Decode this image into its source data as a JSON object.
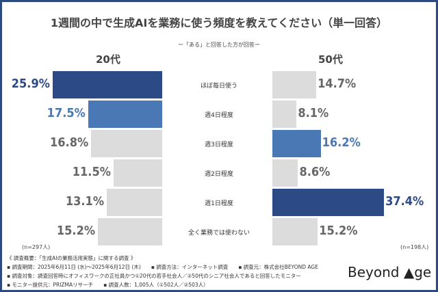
{
  "chart_data": {
    "type": "bar",
    "orientation": "horizontal",
    "title": "1週間の中で生成AIを業務に使う頻度を教えてください（単一回答）",
    "subtitle": "ー「ある」と回答した方が回答ー",
    "categories": [
      "ほぼ毎日使う",
      "週4日程度",
      "週3日程度",
      "週2日程度",
      "週1日程度",
      "全く業務では使わない"
    ],
    "series": [
      {
        "name": "20代",
        "values": [
          25.9,
          17.5,
          16.8,
          11.5,
          13.1,
          15.2
        ],
        "n_label": "(n=297人)"
      },
      {
        "name": "50代",
        "values": [
          14.7,
          8.1,
          16.2,
          8.6,
          37.4,
          15.2
        ],
        "n_label": "(n=198人)"
      }
    ],
    "unit": "%",
    "highlight": {
      "20代": [
        0,
        1
      ],
      "50代": [
        2,
        4
      ]
    }
  },
  "colors": {
    "top": "#2c4a85",
    "second": "#4a78b5",
    "other": "#dcdcdc",
    "label_other": "#666666",
    "border": "#2d4a80"
  },
  "footnotes": [
    "《 調査概要：「生成AIの業務活用実態」に関する調査 》",
    "▪ 調査期間：2025年6月11日 (水)〜2025年6月12日 (木)　　▪ 調査方法：インターネット調査　　▪ 調査元：株式会社BEYOND AGE",
    "▪ 調査対象：調査回答時にオフィスワークの正社員かつ①20代の若手社会人／②50代のシニア社会人であると回答したモニター",
    "▪ モニター提供元：PRIZMAリサーチ　　▪ 調査人数：1,005人（①502人／②503人）"
  ],
  "logo": "Beyond ▲ge"
}
